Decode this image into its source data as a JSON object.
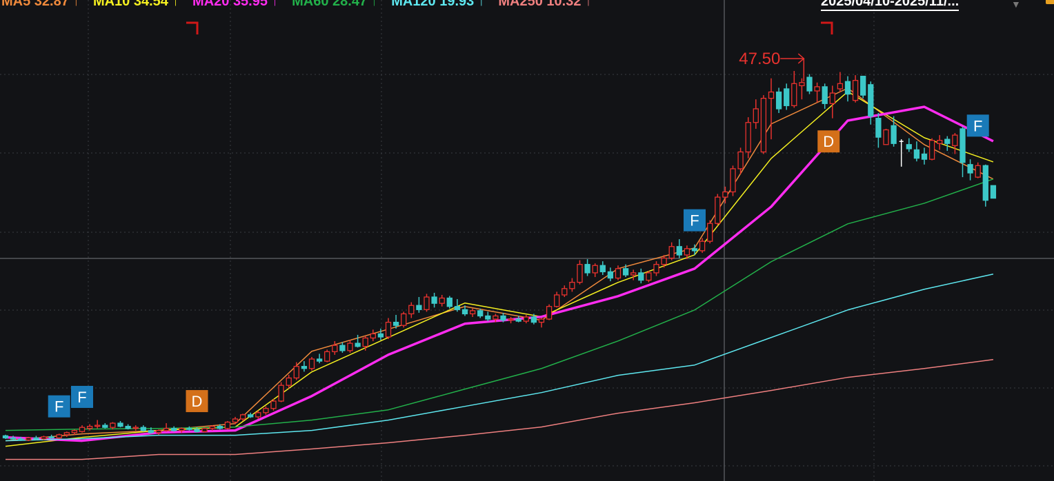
{
  "legend": {
    "items": [
      {
        "text": "MA5 32.87 ↑",
        "color": "#f08a3c"
      },
      {
        "text": "MA10 34.54 ↑",
        "color": "#f5f020"
      },
      {
        "text": "MA20 35.95 ↑",
        "color": "#ff2cf0"
      },
      {
        "text": "MA60 28.47 ↑",
        "color": "#22b04a"
      },
      {
        "text": "MA120 19.93 ↑",
        "color": "#5ee8f0"
      },
      {
        "text": "MA250 10.32 ↑",
        "color": "#f08080"
      }
    ],
    "range": "2025/04/10-2025/11/..."
  },
  "chart_data": {
    "type": "candlestick",
    "title": "",
    "ylim": [
      8.5,
      54.25
    ],
    "grid": true,
    "up_color": "#e8322e",
    "down_color": "#3cc8c8",
    "candles_ohlc": [
      [
        12.8,
        12.9,
        12.5,
        12.6
      ],
      [
        12.6,
        12.8,
        12.4,
        12.5
      ],
      [
        12.5,
        12.7,
        12.3,
        12.4
      ],
      [
        12.4,
        12.7,
        12.3,
        12.6
      ],
      [
        12.6,
        12.8,
        12.4,
        12.5
      ],
      [
        12.5,
        12.8,
        12.4,
        12.7
      ],
      [
        12.7,
        12.9,
        12.5,
        12.6
      ],
      [
        12.6,
        13.0,
        12.5,
        12.9
      ],
      [
        12.9,
        13.2,
        12.7,
        13.1
      ],
      [
        13.1,
        13.4,
        12.9,
        13.3
      ],
      [
        13.2,
        13.8,
        13.1,
        13.6
      ],
      [
        13.5,
        13.9,
        13.3,
        13.7
      ],
      [
        13.7,
        14.3,
        13.5,
        13.8
      ],
      [
        13.8,
        14.0,
        13.5,
        13.6
      ],
      [
        13.6,
        14.1,
        13.4,
        14.0
      ],
      [
        14.0,
        14.2,
        13.6,
        13.7
      ],
      [
        13.7,
        13.9,
        13.4,
        13.5
      ],
      [
        13.5,
        13.8,
        13.3,
        13.6
      ],
      [
        13.6,
        13.8,
        13.2,
        13.3
      ],
      [
        13.3,
        13.6,
        13.0,
        13.1
      ],
      [
        13.1,
        13.4,
        12.9,
        13.3
      ],
      [
        13.3,
        14.0,
        13.2,
        13.5
      ],
      [
        13.5,
        13.7,
        13.2,
        13.3
      ],
      [
        13.3,
        13.6,
        13.1,
        13.5
      ],
      [
        13.5,
        13.7,
        13.3,
        13.4
      ],
      [
        13.4,
        13.6,
        13.1,
        13.2
      ],
      [
        13.2,
        13.6,
        13.1,
        13.5
      ],
      [
        13.5,
        13.8,
        13.3,
        13.7
      ],
      [
        13.7,
        13.9,
        13.4,
        13.5
      ],
      [
        13.5,
        14.2,
        13.4,
        14.1
      ],
      [
        14.1,
        14.6,
        13.9,
        14.4
      ],
      [
        14.4,
        14.9,
        14.2,
        14.8
      ],
      [
        14.8,
        15.0,
        14.5,
        14.6
      ],
      [
        14.6,
        15.2,
        14.4,
        15.0
      ],
      [
        15.0,
        15.6,
        14.8,
        15.4
      ],
      [
        15.4,
        16.3,
        15.2,
        16.1
      ],
      [
        16.1,
        17.9,
        16.0,
        17.6
      ],
      [
        17.6,
        18.6,
        17.3,
        18.3
      ],
      [
        18.3,
        19.8,
        18.1,
        19.4
      ],
      [
        19.4,
        19.9,
        18.9,
        19.2
      ],
      [
        19.2,
        20.3,
        19.0,
        20.1
      ],
      [
        20.1,
        20.6,
        19.7,
        19.9
      ],
      [
        19.9,
        21.0,
        19.8,
        20.8
      ],
      [
        20.8,
        21.8,
        20.5,
        21.4
      ],
      [
        21.4,
        21.7,
        20.7,
        20.9
      ],
      [
        20.9,
        21.9,
        20.7,
        21.6
      ],
      [
        21.6,
        22.4,
        21.2,
        21.3
      ],
      [
        21.3,
        22.3,
        20.9,
        22.1
      ],
      [
        22.1,
        22.9,
        21.8,
        22.5
      ],
      [
        22.5,
        23.0,
        21.9,
        22.2
      ],
      [
        22.2,
        24.0,
        22.0,
        23.6
      ],
      [
        23.6,
        24.3,
        23.0,
        23.3
      ],
      [
        23.3,
        24.6,
        23.1,
        24.4
      ],
      [
        24.4,
        25.5,
        24.0,
        25.2
      ],
      [
        25.2,
        26.0,
        24.5,
        24.8
      ],
      [
        24.8,
        26.3,
        24.6,
        26.0
      ],
      [
        26.0,
        26.4,
        25.0,
        25.4
      ],
      [
        25.4,
        26.2,
        25.1,
        25.9
      ],
      [
        25.9,
        26.1,
        24.9,
        25.1
      ],
      [
        25.1,
        25.8,
        24.6,
        24.8
      ],
      [
        24.8,
        25.2,
        24.2,
        24.4
      ],
      [
        24.4,
        24.9,
        24.1,
        24.7
      ],
      [
        24.7,
        24.9,
        24.0,
        24.2
      ],
      [
        24.2,
        24.6,
        23.7,
        23.9
      ],
      [
        23.9,
        24.4,
        23.6,
        24.2
      ],
      [
        24.2,
        24.5,
        23.6,
        23.8
      ],
      [
        23.8,
        24.1,
        23.5,
        23.9
      ],
      [
        23.9,
        24.2,
        23.6,
        23.7
      ],
      [
        23.7,
        24.3,
        23.5,
        24.1
      ],
      [
        24.1,
        24.4,
        23.4,
        23.6
      ],
      [
        23.6,
        24.0,
        23.1,
        23.9
      ],
      [
        23.9,
        25.3,
        23.8,
        25.1
      ],
      [
        25.1,
        26.5,
        25.0,
        26.2
      ],
      [
        26.2,
        27.1,
        26.0,
        26.8
      ],
      [
        26.8,
        27.8,
        26.5,
        27.4
      ],
      [
        27.4,
        29.5,
        27.2,
        29.1
      ],
      [
        29.1,
        29.6,
        28.0,
        28.3
      ],
      [
        28.3,
        29.2,
        27.9,
        29.0
      ],
      [
        29.0,
        29.4,
        28.1,
        28.4
      ],
      [
        28.4,
        28.8,
        27.5,
        27.8
      ],
      [
        27.8,
        29.0,
        27.6,
        28.7
      ],
      [
        28.7,
        29.1,
        27.9,
        28.1
      ],
      [
        28.1,
        28.6,
        27.6,
        28.3
      ],
      [
        28.3,
        28.7,
        27.3,
        27.6
      ],
      [
        27.6,
        28.5,
        27.4,
        28.3
      ],
      [
        28.3,
        29.4,
        28.0,
        29.1
      ],
      [
        29.1,
        30.0,
        28.8,
        29.7
      ],
      [
        29.7,
        31.2,
        29.5,
        30.8
      ],
      [
        30.8,
        31.5,
        29.7,
        30.0
      ],
      [
        30.0,
        30.9,
        29.6,
        30.6
      ],
      [
        30.6,
        31.0,
        30.0,
        30.4
      ],
      [
        30.4,
        31.6,
        30.2,
        31.3
      ],
      [
        31.3,
        33.3,
        31.1,
        33.0
      ],
      [
        33.0,
        35.8,
        32.8,
        35.5
      ],
      [
        35.5,
        36.5,
        34.9,
        36.0
      ],
      [
        36.0,
        38.5,
        35.6,
        38.2
      ],
      [
        38.2,
        40.2,
        37.7,
        39.8
      ],
      [
        39.8,
        43.1,
        39.2,
        42.6
      ],
      [
        42.6,
        44.8,
        42.0,
        43.9
      ],
      [
        39.8,
        45.2,
        39.6,
        44.9
      ],
      [
        44.9,
        46.8,
        41.0,
        45.5
      ],
      [
        45.5,
        45.9,
        43.5,
        43.9
      ],
      [
        45.8,
        46.3,
        43.8,
        44.2
      ],
      [
        44.2,
        47.5,
        44.0,
        46.3
      ],
      [
        46.1,
        46.8,
        44.8,
        46.4
      ],
      [
        46.9,
        47.2,
        45.3,
        45.6
      ],
      [
        45.6,
        46.4,
        44.5,
        46.0
      ],
      [
        46.0,
        46.3,
        43.9,
        44.4
      ],
      [
        44.4,
        46.1,
        43.0,
        45.4
      ],
      [
        45.8,
        47.4,
        45.5,
        46.3
      ],
      [
        46.5,
        47.0,
        44.6,
        45.3
      ],
      [
        44.7,
        47.1,
        44.5,
        46.6
      ],
      [
        47.0,
        47.0,
        44.9,
        45.2
      ],
      [
        46.2,
        46.5,
        42.4,
        43.2
      ],
      [
        43.0,
        43.5,
        40.2,
        41.2
      ],
      [
        40.5,
        42.0,
        40.5,
        41.9
      ],
      [
        42.3,
        43.2,
        40.3,
        40.6
      ],
      [
        40.8,
        41.0,
        38.4,
        40.8
      ],
      [
        40.5,
        41.1,
        39.8,
        40.1
      ],
      [
        40.0,
        40.8,
        38.9,
        39.2
      ],
      [
        39.6,
        40.2,
        38.6,
        39.1
      ],
      [
        39.1,
        41.1,
        39.0,
        40.9
      ],
      [
        40.6,
        41.4,
        40.0,
        40.9
      ],
      [
        41.0,
        41.3,
        39.9,
        40.6
      ],
      [
        40.4,
        41.6,
        39.6,
        41.4
      ],
      [
        42.0,
        42.2,
        37.4,
        38.8
      ],
      [
        38.6,
        39.1,
        37.1,
        37.8
      ],
      [
        37.4,
        38.8,
        37.3,
        38.5
      ],
      [
        38.5,
        38.6,
        34.6,
        35.2
      ],
      [
        36.6,
        36.6,
        35.4,
        35.4
      ]
    ],
    "ma_sample_indices": [
      0,
      10,
      20,
      30,
      40,
      50,
      60,
      70,
      80,
      90,
      100,
      110,
      120,
      129
    ],
    "ma_series": [
      {
        "name": "MA5",
        "color": "#f08a3c",
        "width": 1.5,
        "values": [
          12.33,
          12.98,
          13.31,
          13.96,
          20.84,
          22.94,
          25.1,
          23.79,
          28.7,
          30.67,
          42.46,
          45.86,
          40.49,
          37.22
        ]
      },
      {
        "name": "MA10",
        "color": "#f5f020",
        "width": 1.5,
        "values": [
          11.8,
          12.65,
          13.31,
          13.64,
          18.88,
          22.15,
          25.43,
          24.12,
          27.39,
          30.01,
          39.18,
          45.54,
          41.15,
          38.85
        ]
      },
      {
        "name": "MA20",
        "color": "#ff2cf0",
        "width": 3.5,
        "values": [
          12.65,
          12.33,
          13.11,
          13.31,
          16.58,
          20.51,
          23.46,
          24.12,
          26.08,
          28.7,
          34.59,
          42.78,
          44.09,
          40.82
        ]
      },
      {
        "name": "MA60",
        "color": "#22b04a",
        "width": 1.5,
        "values": [
          13.31,
          13.44,
          13.5,
          13.64,
          14.29,
          15.27,
          17.24,
          19.2,
          21.82,
          24.77,
          29.36,
          32.96,
          34.92,
          37.22
        ]
      },
      {
        "name": "MA120",
        "color": "#5ee8f0",
        "width": 1.5,
        "values": [
          12.33,
          12.52,
          12.85,
          12.85,
          13.31,
          14.29,
          15.6,
          16.91,
          18.55,
          19.53,
          22.15,
          24.77,
          26.74,
          28.18
        ]
      },
      {
        "name": "MA250",
        "color": "#f08080",
        "width": 1.5,
        "values": [
          10.56,
          10.56,
          11.02,
          11.02,
          11.55,
          12.14,
          12.85,
          13.64,
          14.95,
          15.94,
          17.11,
          18.36,
          19.2,
          20.05
        ]
      }
    ],
    "annotations": [
      {
        "label": "47.50",
        "index": 103,
        "price": 47.5,
        "color": "#e8322e"
      }
    ],
    "markers": [
      {
        "label": "F",
        "index": 7,
        "price": 15.6,
        "color": "#1a7ab8"
      },
      {
        "label": "F",
        "index": 10,
        "price": 16.5,
        "color": "#1a7ab8"
      },
      {
        "label": "D",
        "index": 25,
        "price": 16.1,
        "color": "#d4701a"
      },
      {
        "label": "F",
        "index": 90,
        "price": 33.3,
        "color": "#1a7ab8"
      },
      {
        "label": "D",
        "index": 107.5,
        "price": 40.8,
        "color": "#d4701a"
      },
      {
        "label": "F",
        "index": 127,
        "price": 42.3,
        "color": "#1a7ab8"
      }
    ]
  }
}
